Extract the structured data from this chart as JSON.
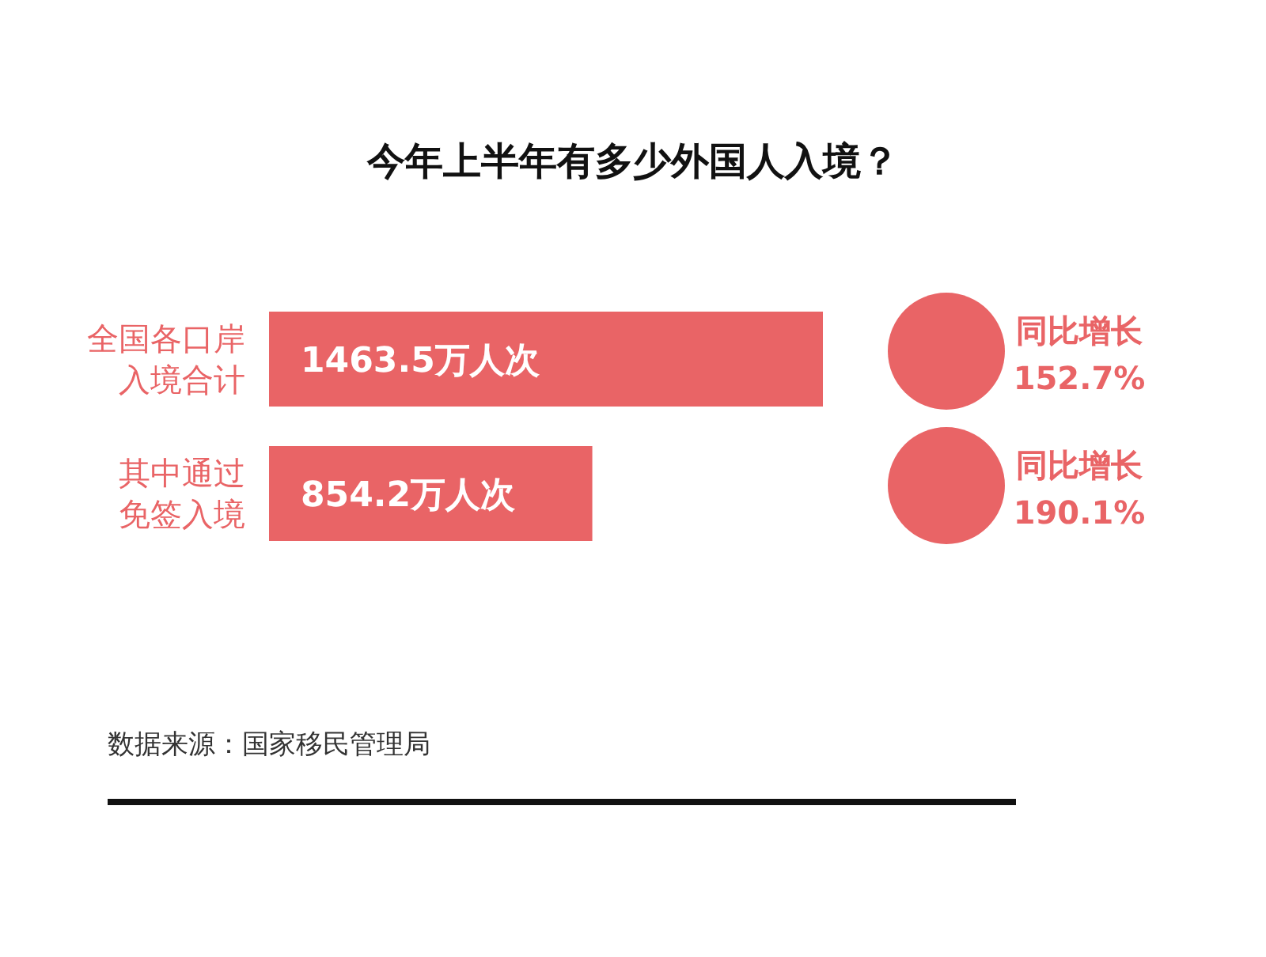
{
  "chart_data": {
    "type": "bar",
    "orientation": "horizontal",
    "title": "今年上半年有多少外国人入境？",
    "categories": [
      "全国各口岸入境合计",
      "其中通过免签入境"
    ],
    "values": [
      1463.5,
      854.2
    ],
    "value_labels": [
      "1463.5万人次",
      "854.2万人次"
    ],
    "color": "#e96466",
    "annotations": [
      "同比增长 152.7%",
      "同比增长 190.1%",
      "数据来源：国家移民管理局"
    ]
  }
}
